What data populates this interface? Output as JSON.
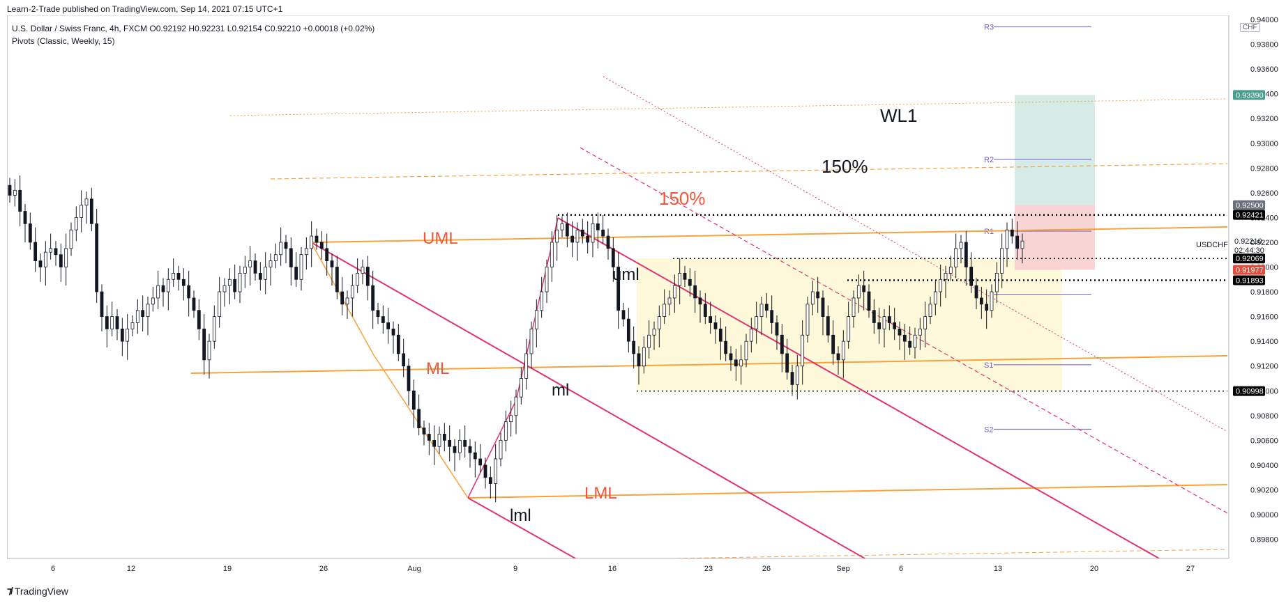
{
  "header": {
    "publisher": "Learn-2-Trade published on TradingView.com, Sep 14, 2021 07:15 UTC+1",
    "legend_line1": "U.S. Dollar / Swiss Franc, 4h, FXCM  O0.92192  H0.92231  L0.92154  C0.92210  +0.00018 (+0.02%)",
    "legend_line2": "Pivots (Classic, Weekly, 15)",
    "currency": "CHF"
  },
  "footer": {
    "brand": "TradingView",
    "logo_icon": "tradingview-logo-icon"
  },
  "colors": {
    "orange": "#f7a23b",
    "crimson": "#e0336f",
    "pivot": "#6a5acd",
    "label_red": "#f0583a",
    "range_fill": "#fff9db",
    "target_fill": "#cfe6e2",
    "stop_fill": "#f7cccc",
    "candle": "#131722",
    "last_price_bg": "#000000",
    "target_label_bg": "#4a9e8f",
    "stop_label_bg": "#e04b3a",
    "gray_label_bg": "#6b6f7a"
  },
  "chart_data": {
    "type": "candlestick",
    "symbol": "USDCHF",
    "timeframe": "4h",
    "ylim": [
      0.8974,
      0.9402
    ],
    "price_axis_ticks": [
      "0.94000",
      "0.93800",
      "0.93600",
      "0.93400",
      "0.93200",
      "0.93000",
      "0.92800",
      "0.92600",
      "0.92400",
      "0.92200",
      "0.92000",
      "0.91800",
      "0.91600",
      "0.91400",
      "0.91200",
      "0.91000",
      "0.90800",
      "0.90600",
      "0.90400",
      "0.90200",
      "0.90000",
      "0.89800"
    ],
    "time_axis_labels": [
      "6",
      "12",
      "19",
      "26",
      "Aug",
      "9",
      "16",
      "23",
      "26",
      "Sep",
      "6",
      "13",
      "20",
      "27"
    ],
    "price_labels": [
      {
        "text": "0.93390",
        "kind": "target"
      },
      {
        "text": "0.92500",
        "kind": "gray"
      },
      {
        "text": "0.92421",
        "kind": "black"
      },
      {
        "text": "0.92210",
        "kind": "last"
      },
      {
        "text": "02:44:30",
        "kind": "countdown"
      },
      {
        "text": "0.92069",
        "kind": "black"
      },
      {
        "text": "0.91977",
        "kind": "stop"
      },
      {
        "text": "0.91893",
        "kind": "black"
      },
      {
        "text": "0.90998",
        "kind": "black"
      }
    ],
    "symbol_label": "USDCHF",
    "pivots": [
      {
        "name": "R3",
        "value": 0.9394
      },
      {
        "name": "R2",
        "value": 0.9287
      },
      {
        "name": "R1",
        "value": 0.9229
      },
      {
        "name": "P",
        "value": 0.9178
      },
      {
        "name": "S1",
        "value": 0.9121
      },
      {
        "name": "S2",
        "value": 0.9069
      }
    ],
    "levels": {
      "range_top": 0.92069,
      "range_bottom": 0.90998,
      "resistance": 0.92421,
      "support_mid": 0.91893,
      "tp": 0.9339,
      "entry": 0.925,
      "sl": 0.91977
    },
    "annotations": [
      "WL1",
      "150%",
      "150%",
      "UML",
      "uml",
      "ML",
      "ml",
      "LML",
      "lml"
    ],
    "candle_closes": [
      0.9258,
      0.9262,
      0.9245,
      0.9235,
      0.922,
      0.9205,
      0.92,
      0.9212,
      0.9215,
      0.921,
      0.92,
      0.9215,
      0.923,
      0.924,
      0.925,
      0.9255,
      0.9235,
      0.918,
      0.916,
      0.915,
      0.916,
      0.915,
      0.914,
      0.915,
      0.9155,
      0.9165,
      0.916,
      0.917,
      0.9175,
      0.9185,
      0.918,
      0.919,
      0.9195,
      0.919,
      0.9185,
      0.9175,
      0.9165,
      0.915,
      0.9125,
      0.914,
      0.916,
      0.918,
      0.9185,
      0.919,
      0.918,
      0.9195,
      0.92,
      0.9205,
      0.9195,
      0.919,
      0.92,
      0.9205,
      0.921,
      0.922,
      0.9215,
      0.92,
      0.919,
      0.921,
      0.9215,
      0.9225,
      0.922,
      0.9215,
      0.9205,
      0.92,
      0.918,
      0.917,
      0.9175,
      0.9185,
      0.9195,
      0.92,
      0.9185,
      0.9165,
      0.916,
      0.9155,
      0.915,
      0.9145,
      0.913,
      0.912,
      0.91,
      0.9085,
      0.907,
      0.9065,
      0.906,
      0.9055,
      0.9065,
      0.906,
      0.9055,
      0.905,
      0.906,
      0.9055,
      0.905,
      0.9045,
      0.904,
      0.903,
      0.9025,
      0.9045,
      0.906,
      0.9075,
      0.908,
      0.9095,
      0.911,
      0.913,
      0.915,
      0.9165,
      0.918,
      0.92,
      0.922,
      0.923,
      0.9235,
      0.9225,
      0.922,
      0.923,
      0.9225,
      0.922,
      0.9235,
      0.923,
      0.9225,
      0.9215,
      0.92,
      0.9165,
      0.9158,
      0.914,
      0.913,
      0.912,
      0.9135,
      0.9145,
      0.915,
      0.916,
      0.917,
      0.9175,
      0.9185,
      0.9195,
      0.919,
      0.9185,
      0.9175,
      0.917,
      0.916,
      0.9155,
      0.915,
      0.914,
      0.913,
      0.9125,
      0.912,
      0.9125,
      0.914,
      0.915,
      0.916,
      0.917,
      0.9165,
      0.9155,
      0.9145,
      0.913,
      0.9115,
      0.9105,
      0.912,
      0.9145,
      0.917,
      0.918,
      0.9175,
      0.916,
      0.9145,
      0.913,
      0.9125,
      0.914,
      0.916,
      0.9175,
      0.9185,
      0.918,
      0.9165,
      0.9155,
      0.915,
      0.916,
      0.9155,
      0.915,
      0.9145,
      0.914,
      0.9135,
      0.9145,
      0.915,
      0.916,
      0.917,
      0.918,
      0.919,
      0.9195,
      0.92,
      0.9215,
      0.922,
      0.92,
      0.9185,
      0.9175,
      0.917,
      0.9165,
      0.918,
      0.9195,
      0.9215,
      0.923,
      0.9225,
      0.9215,
      0.9221
    ]
  }
}
